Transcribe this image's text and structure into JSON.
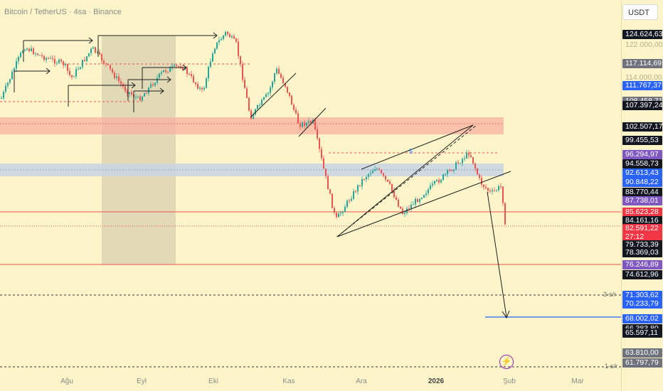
{
  "header": {
    "symbol_title": "Bitcoin / TetherUS · 4sa · Binance",
    "currency": "USDT"
  },
  "x_axis": {
    "labels": [
      "Ağu",
      "Eyl",
      "Eki",
      "Kas",
      "Ara",
      "2026",
      "Şub",
      "Mar"
    ]
  },
  "price_scale": {
    "labels": [
      {
        "text": "124.624,63",
        "style": "dark"
      },
      {
        "text": "122.000,00",
        "style": "faint"
      },
      {
        "text": "117.114,69",
        "style": "gray"
      },
      {
        "text": "114.000,00",
        "style": "faint"
      },
      {
        "text": "111.767,37",
        "style": "blue"
      },
      {
        "text": "108.458,71",
        "style": "gray"
      },
      {
        "text": "107.397,24",
        "style": "dark"
      },
      {
        "text": "102.507,17",
        "style": "dark"
      },
      {
        "text": "99.455,53",
        "style": "dark"
      },
      {
        "text": "96.294,97",
        "style": "purple"
      },
      {
        "text": "94.558,73",
        "style": "dark"
      },
      {
        "text": "92.613,43",
        "style": "blue"
      },
      {
        "text": "90.848,22",
        "style": "blue"
      },
      {
        "text": "88.770,44",
        "style": "dark"
      },
      {
        "text": "87.738,01",
        "style": "purple"
      },
      {
        "text": "85.623,28",
        "style": "red"
      },
      {
        "text": "84.161,16",
        "style": "dark"
      },
      {
        "text": "82.591,22",
        "style": "red"
      },
      {
        "text": "27:12",
        "style": "red"
      },
      {
        "text": "79.733,39",
        "style": "dark"
      },
      {
        "text": "78.369,03",
        "style": "dark"
      },
      {
        "text": "76.246,89",
        "style": "purple"
      },
      {
        "text": "74.612,96",
        "style": "dark"
      },
      {
        "text": "71.303,62",
        "style": "blue"
      },
      {
        "text": "70.233,79",
        "style": "blue"
      },
      {
        "text": "68.002,02",
        "style": "blue"
      },
      {
        "text": "66.383,80",
        "style": "dark"
      },
      {
        "text": "65.597,11",
        "style": "dark"
      },
      {
        "text": "63.810,00",
        "style": "gray"
      },
      {
        "text": "61.797,79",
        "style": "gray"
      }
    ]
  },
  "levels": {
    "s3": "3-s/r",
    "s1": "1-s/r",
    "channel_mark": "5"
  },
  "colors": {
    "background": "#fdf5c9",
    "up_candle": "#26a69a",
    "down_candle": "#ef5350",
    "blue_label": "#2962ff",
    "purple_label": "#7e57c2",
    "red_label": "#f23645",
    "dark_label": "#131722",
    "resistance_zone": "#f8b0a0",
    "gray_zone": "#c9d3e4",
    "date_range": "#d8cfb0"
  }
}
